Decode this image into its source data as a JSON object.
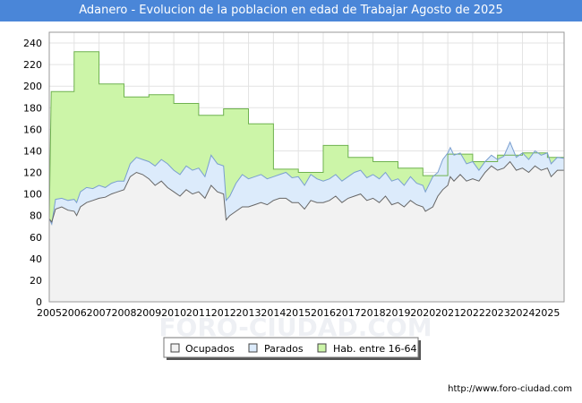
{
  "header": {
    "title": "Adanero - Evolucion de la poblacion en edad de Trabajar Agosto de 2025"
  },
  "watermark": "FORO-CIUDAD.COM",
  "source": "http://www.foro-ciudad.com",
  "chart_data": {
    "type": "area",
    "title": "Adanero - Evolucion de la poblacion en edad de Trabajar Agosto de 2025",
    "xlabel": "",
    "ylabel": "",
    "xlim": [
      2005,
      2025.67
    ],
    "ylim": [
      0,
      250
    ],
    "yticks": [
      0,
      20,
      40,
      60,
      80,
      100,
      120,
      140,
      160,
      180,
      200,
      220,
      240
    ],
    "xticks": [
      2005,
      2006,
      2007,
      2008,
      2009,
      2010,
      2011,
      2012,
      2013,
      2014,
      2015,
      2016,
      2017,
      2018,
      2019,
      2020,
      2021,
      2022,
      2023,
      2024,
      2025
    ],
    "grid": true,
    "legend_position": "bottom",
    "series": [
      {
        "name": "Hab. entre 16-64",
        "color": "#ccf5a8",
        "line_color": "#6fb24f",
        "style": "step",
        "points": [
          [
            2005,
            77
          ],
          [
            2005.08,
            195
          ],
          [
            2006,
            195
          ],
          [
            2006,
            232
          ],
          [
            2007,
            232
          ],
          [
            2007,
            202
          ],
          [
            2008,
            202
          ],
          [
            2008,
            190
          ],
          [
            2009,
            190
          ],
          [
            2009,
            192
          ],
          [
            2010,
            192
          ],
          [
            2010,
            184
          ],
          [
            2011,
            184
          ],
          [
            2011,
            173
          ],
          [
            2012,
            173
          ],
          [
            2012,
            179
          ],
          [
            2013,
            179
          ],
          [
            2013,
            165
          ],
          [
            2014,
            165
          ],
          [
            2014,
            123
          ],
          [
            2015,
            123
          ],
          [
            2015,
            120
          ],
          [
            2016,
            120
          ],
          [
            2016,
            145
          ],
          [
            2017,
            145
          ],
          [
            2017,
            134
          ],
          [
            2018,
            134
          ],
          [
            2018,
            130
          ],
          [
            2019,
            130
          ],
          [
            2019,
            124
          ],
          [
            2020,
            124
          ],
          [
            2020,
            117
          ],
          [
            2021,
            117
          ],
          [
            2021,
            137
          ],
          [
            2022,
            137
          ],
          [
            2022,
            130
          ],
          [
            2023,
            130
          ],
          [
            2023,
            136
          ],
          [
            2024,
            136
          ],
          [
            2024,
            138
          ],
          [
            2025,
            138
          ],
          [
            2025,
            134
          ],
          [
            2025.67,
            134
          ]
        ]
      },
      {
        "name": "Parados",
        "color": "#dcebfb",
        "line_color": "#7a9fd0",
        "style": "line",
        "points": [
          [
            2005,
            77
          ],
          [
            2005.1,
            72
          ],
          [
            2005.25,
            95
          ],
          [
            2005.5,
            96
          ],
          [
            2005.75,
            94
          ],
          [
            2006,
            95
          ],
          [
            2006.1,
            92
          ],
          [
            2006.25,
            102
          ],
          [
            2006.5,
            106
          ],
          [
            2006.75,
            105
          ],
          [
            2007,
            108
          ],
          [
            2007.25,
            106
          ],
          [
            2007.5,
            110
          ],
          [
            2007.75,
            112
          ],
          [
            2008,
            112
          ],
          [
            2008.25,
            128
          ],
          [
            2008.5,
            134
          ],
          [
            2008.75,
            132
          ],
          [
            2009,
            130
          ],
          [
            2009.25,
            126
          ],
          [
            2009.5,
            132
          ],
          [
            2009.75,
            128
          ],
          [
            2010,
            122
          ],
          [
            2010.25,
            118
          ],
          [
            2010.5,
            126
          ],
          [
            2010.75,
            122
          ],
          [
            2011,
            124
          ],
          [
            2011.25,
            116
          ],
          [
            2011.5,
            136
          ],
          [
            2011.75,
            128
          ],
          [
            2012,
            126
          ],
          [
            2012.1,
            94
          ],
          [
            2012.25,
            98
          ],
          [
            2012.5,
            110
          ],
          [
            2012.75,
            118
          ],
          [
            2013,
            114
          ],
          [
            2013.25,
            116
          ],
          [
            2013.5,
            118
          ],
          [
            2013.75,
            114
          ],
          [
            2014,
            116
          ],
          [
            2014.25,
            118
          ],
          [
            2014.5,
            120
          ],
          [
            2014.75,
            115
          ],
          [
            2015,
            116
          ],
          [
            2015.25,
            108
          ],
          [
            2015.5,
            118
          ],
          [
            2015.75,
            114
          ],
          [
            2016,
            112
          ],
          [
            2016.25,
            114
          ],
          [
            2016.5,
            118
          ],
          [
            2016.75,
            112
          ],
          [
            2017,
            116
          ],
          [
            2017.25,
            120
          ],
          [
            2017.5,
            122
          ],
          [
            2017.75,
            115
          ],
          [
            2018,
            118
          ],
          [
            2018.25,
            114
          ],
          [
            2018.5,
            120
          ],
          [
            2018.75,
            112
          ],
          [
            2019,
            114
          ],
          [
            2019.25,
            108
          ],
          [
            2019.5,
            116
          ],
          [
            2019.75,
            110
          ],
          [
            2020,
            108
          ],
          [
            2020.1,
            102
          ],
          [
            2020.4,
            116
          ],
          [
            2020.6,
            120
          ],
          [
            2020.8,
            132
          ],
          [
            2021,
            138
          ],
          [
            2021.1,
            143
          ],
          [
            2021.25,
            136
          ],
          [
            2021.5,
            138
          ],
          [
            2021.75,
            128
          ],
          [
            2022,
            130
          ],
          [
            2022.25,
            122
          ],
          [
            2022.5,
            130
          ],
          [
            2022.75,
            136
          ],
          [
            2023,
            132
          ],
          [
            2023.25,
            135
          ],
          [
            2023.5,
            148
          ],
          [
            2023.75,
            134
          ],
          [
            2024,
            138
          ],
          [
            2024.25,
            132
          ],
          [
            2024.5,
            140
          ],
          [
            2024.75,
            136
          ],
          [
            2025,
            138
          ],
          [
            2025.15,
            128
          ],
          [
            2025.4,
            134
          ],
          [
            2025.67,
            133
          ]
        ]
      },
      {
        "name": "Ocupados",
        "color": "#f2f2f2",
        "line_color": "#666666",
        "style": "line",
        "points": [
          [
            2005,
            77
          ],
          [
            2005.1,
            74
          ],
          [
            2005.25,
            86
          ],
          [
            2005.5,
            88
          ],
          [
            2005.75,
            85
          ],
          [
            2006,
            84
          ],
          [
            2006.1,
            80
          ],
          [
            2006.25,
            88
          ],
          [
            2006.5,
            92
          ],
          [
            2006.75,
            94
          ],
          [
            2007,
            96
          ],
          [
            2007.25,
            97
          ],
          [
            2007.5,
            100
          ],
          [
            2007.75,
            102
          ],
          [
            2008,
            104
          ],
          [
            2008.25,
            116
          ],
          [
            2008.5,
            120
          ],
          [
            2008.75,
            118
          ],
          [
            2009,
            114
          ],
          [
            2009.25,
            108
          ],
          [
            2009.5,
            112
          ],
          [
            2009.75,
            106
          ],
          [
            2010,
            102
          ],
          [
            2010.25,
            98
          ],
          [
            2010.5,
            104
          ],
          [
            2010.75,
            100
          ],
          [
            2011,
            102
          ],
          [
            2011.25,
            96
          ],
          [
            2011.5,
            108
          ],
          [
            2011.75,
            102
          ],
          [
            2012,
            100
          ],
          [
            2012.1,
            76
          ],
          [
            2012.25,
            80
          ],
          [
            2012.5,
            84
          ],
          [
            2012.75,
            88
          ],
          [
            2013,
            88
          ],
          [
            2013.25,
            90
          ],
          [
            2013.5,
            92
          ],
          [
            2013.75,
            90
          ],
          [
            2014,
            94
          ],
          [
            2014.25,
            96
          ],
          [
            2014.5,
            96
          ],
          [
            2014.75,
            92
          ],
          [
            2015,
            92
          ],
          [
            2015.25,
            86
          ],
          [
            2015.5,
            94
          ],
          [
            2015.75,
            92
          ],
          [
            2016,
            92
          ],
          [
            2016.25,
            94
          ],
          [
            2016.5,
            98
          ],
          [
            2016.75,
            92
          ],
          [
            2017,
            96
          ],
          [
            2017.25,
            98
          ],
          [
            2017.5,
            100
          ],
          [
            2017.75,
            94
          ],
          [
            2018,
            96
          ],
          [
            2018.25,
            92
          ],
          [
            2018.5,
            98
          ],
          [
            2018.75,
            90
          ],
          [
            2019,
            92
          ],
          [
            2019.25,
            88
          ],
          [
            2019.5,
            94
          ],
          [
            2019.75,
            90
          ],
          [
            2020,
            88
          ],
          [
            2020.1,
            84
          ],
          [
            2020.4,
            88
          ],
          [
            2020.6,
            98
          ],
          [
            2020.8,
            104
          ],
          [
            2021,
            108
          ],
          [
            2021.1,
            116
          ],
          [
            2021.25,
            112
          ],
          [
            2021.5,
            118
          ],
          [
            2021.75,
            112
          ],
          [
            2022,
            114
          ],
          [
            2022.25,
            112
          ],
          [
            2022.5,
            120
          ],
          [
            2022.75,
            126
          ],
          [
            2023,
            122
          ],
          [
            2023.25,
            124
          ],
          [
            2023.5,
            130
          ],
          [
            2023.75,
            122
          ],
          [
            2024,
            124
          ],
          [
            2024.25,
            120
          ],
          [
            2024.5,
            126
          ],
          [
            2024.75,
            122
          ],
          [
            2025,
            124
          ],
          [
            2025.15,
            116
          ],
          [
            2025.4,
            122
          ],
          [
            2025.67,
            122
          ]
        ]
      }
    ],
    "legend": [
      "Ocupados",
      "Parados",
      "Hab. entre 16-64"
    ]
  }
}
